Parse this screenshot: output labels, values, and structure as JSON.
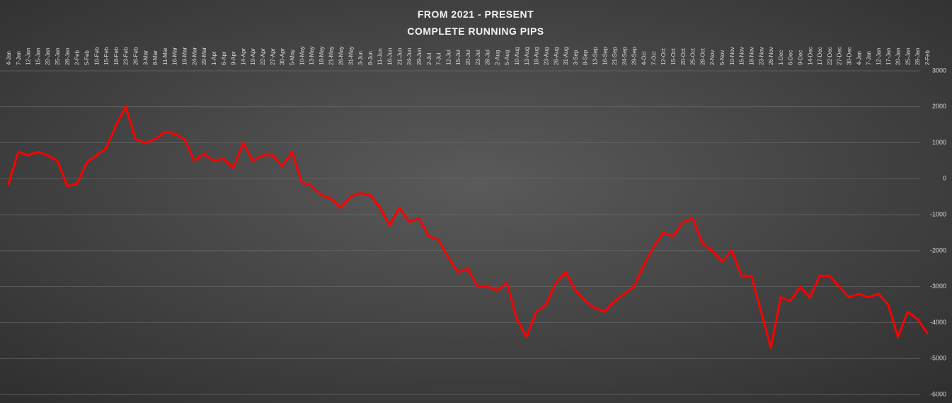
{
  "chart_data": {
    "type": "line",
    "title": "FROM 2021 - PRESENT",
    "subtitle": "COMPLETE RUNNING PIPS",
    "categories": [
      "4-Jan",
      "7-Jan",
      "12-Jan",
      "15-Jan",
      "20-Jan",
      "25-Jan",
      "28-Jan",
      "2-Feb",
      "5-Feb",
      "10-Feb",
      "15-Feb",
      "18-Feb",
      "23-Feb",
      "26-Feb",
      "3-Mar",
      "8-Mar",
      "11-Mar",
      "16-Mar",
      "19-Mar",
      "24-Mar",
      "29-Mar",
      "1-Apr",
      "6-Apr",
      "9-Apr",
      "14-Apr",
      "19-Apr",
      "22-Apr",
      "27-Apr",
      "30-Apr",
      "5-May",
      "10-May",
      "13-May",
      "18-May",
      "21-May",
      "26-May",
      "31-May",
      "3-Jun",
      "8-Jun",
      "11-Jun",
      "16-Jun",
      "21-Jun",
      "24-Jun",
      "29-Jun",
      "2-Jul",
      "7-Jul",
      "12-Jul",
      "15-Jul",
      "20-Jul",
      "23-Jul",
      "28-Jul",
      "2-Aug",
      "5-Aug",
      "10-Aug",
      "13-Aug",
      "18-Aug",
      "23-Aug",
      "26-Aug",
      "31-Aug",
      "3-Sep",
      "8-Sep",
      "13-Sep",
      "16-Sep",
      "21-Sep",
      "24-Sep",
      "29-Sep",
      "4-Oct",
      "7-Oct",
      "12-Oct",
      "15-Oct",
      "20-Oct",
      "25-Oct",
      "28-Oct",
      "2-Nov",
      "5-Nov",
      "10-Nov",
      "15-Nov",
      "18-Nov",
      "23-Nov",
      "26-Nov",
      "1-Dec",
      "6-Dec",
      "9-Dec",
      "14-Dec",
      "17-Dec",
      "22-Dec",
      "27-Dec",
      "30-Dec",
      "4-Jan",
      "7-Jan",
      "12-Jan",
      "17-Jan",
      "20-Jan",
      "25-Jan",
      "28-Jan",
      "2-Feb"
    ],
    "values": [
      -150,
      750,
      650,
      750,
      650,
      500,
      -200,
      -150,
      450,
      650,
      850,
      1500,
      2000,
      1100,
      1000,
      1100,
      1300,
      1250,
      1100,
      500,
      700,
      500,
      550,
      300,
      1000,
      500,
      650,
      650,
      350,
      750,
      -100,
      -200,
      -450,
      -550,
      -800,
      -500,
      -400,
      -450,
      -800,
      -1300,
      -800,
      -1200,
      -1100,
      -1600,
      -1700,
      -2200,
      -2600,
      -2500,
      -3000,
      -3000,
      -3100,
      -2900,
      -3900,
      -4400,
      -3700,
      -3500,
      -2900,
      -2600,
      -3100,
      -3400,
      -3600,
      -3700,
      -3400,
      -3200,
      -3000,
      -2400,
      -1900,
      -1500,
      -1600,
      -1200,
      -1100,
      -1800,
      -2000,
      -2300,
      -2000,
      -2700,
      -2700,
      -3700,
      -4700,
      -3300,
      -3400,
      -3000,
      -3300,
      -2700,
      -2700,
      -3000,
      -3300,
      -3200,
      -3300,
      -3200,
      -3500,
      -4400,
      -3700,
      -3900,
      -4300
    ],
    "color": "#ff0000",
    "ylim": [
      -6000,
      3000
    ],
    "yticks": [
      -6000,
      -5000,
      -4000,
      -3000,
      -2000,
      -1000,
      0,
      1000,
      2000,
      3000
    ],
    "grid": true
  }
}
